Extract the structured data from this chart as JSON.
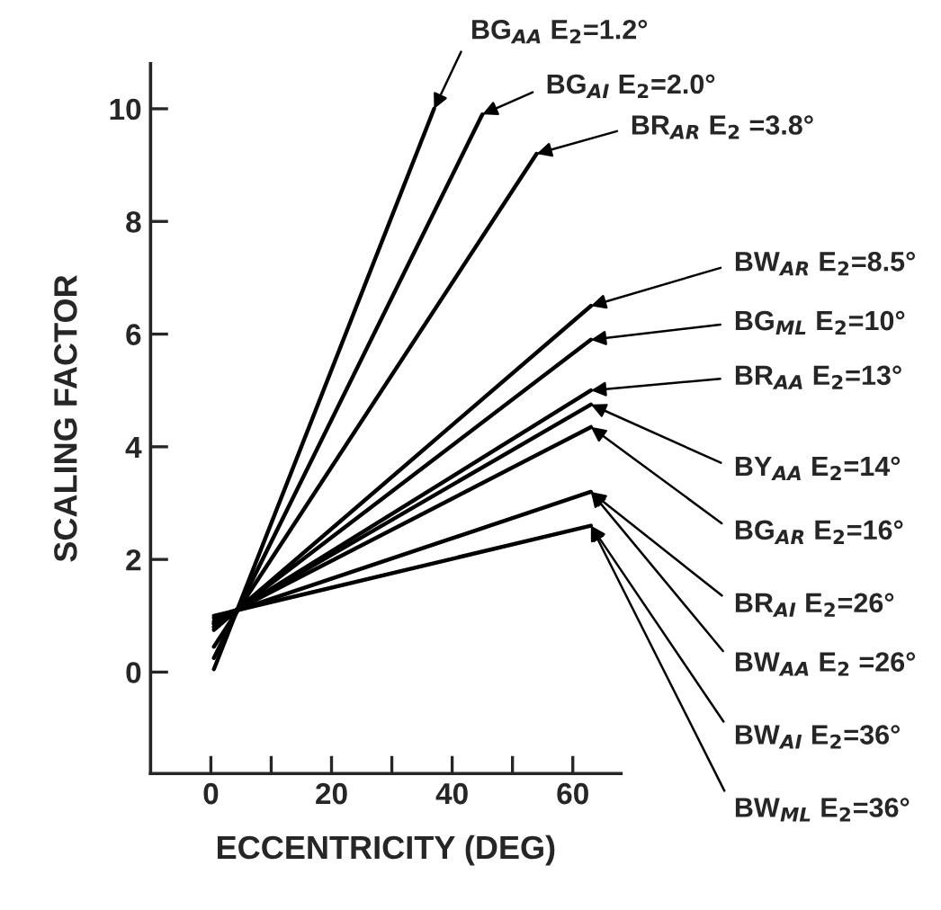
{
  "chart_data": {
    "type": "line",
    "xlabel": "ECCENTRICITY (DEG)",
    "ylabel": "SCALING FACTOR",
    "xlim": [
      -10,
      68
    ],
    "ylim": [
      -1.8,
      10.8
    ],
    "xticks": [
      0,
      {
        "value": 10,
        "label": null
      },
      20,
      {
        "value": 30,
        "label": null
      },
      40,
      {
        "value": 50,
        "label": null
      },
      60
    ],
    "yticks": [
      0,
      2,
      4,
      6,
      8,
      10
    ],
    "grid": false,
    "legend": false,
    "marker": "none",
    "line_style": "solid",
    "series": [
      {
        "color": "#000000",
        "x": [
          0.5,
          37
        ],
        "values": [
          0.05,
          10.0
        ]
      },
      {
        "color": "#000000",
        "x": [
          0.5,
          45
        ],
        "values": [
          0.25,
          9.9
        ]
      },
      {
        "color": "#000000",
        "x": [
          0.5,
          54
        ],
        "values": [
          0.45,
          9.2
        ]
      },
      {
        "color": "#000000",
        "x": [
          0.5,
          63
        ],
        "values": [
          0.75,
          6.5
        ]
      },
      {
        "color": "#000000",
        "x": [
          0.5,
          63
        ],
        "values": [
          0.8,
          5.9
        ]
      },
      {
        "color": "#000000",
        "x": [
          0.5,
          63
        ],
        "values": [
          0.85,
          5.0
        ]
      },
      {
        "color": "#000000",
        "x": [
          0.5,
          63
        ],
        "values": [
          0.87,
          4.75
        ]
      },
      {
        "color": "#000000",
        "x": [
          0.5,
          63
        ],
        "values": [
          0.9,
          4.35
        ]
      },
      {
        "color": "#000000",
        "x": [
          0.5,
          63
        ],
        "values": [
          0.96,
          3.2
        ]
      },
      {
        "color": "#000000",
        "x": [
          0.5,
          63
        ],
        "values": [
          1.0,
          2.6
        ]
      }
    ],
    "annotations": [
      {
        "text": "BG$_{AA}$ E$_{2}$=1.2°",
        "x": 37,
        "y": 10.0
      },
      {
        "text": "BG$_{AI}$ E$_{2}$=2.0°",
        "x": 45,
        "y": 9.9
      },
      {
        "text": "BR$_{AR}$ E$_{2}$ =3.8°",
        "x": 54,
        "y": 9.2
      },
      {
        "text": "BW$_{AR}$ E$_{2}$=8.5°",
        "x": 63,
        "y": 6.5
      },
      {
        "text": "BG$_{ML}$ E$_{2}$=10°",
        "x": 63,
        "y": 5.9
      },
      {
        "text": "BR$_{AA}$ E$_{2}$=13°",
        "x": 63,
        "y": 5.0
      },
      {
        "text": "BY$_{AA}$ E$_{2}$=14°",
        "x": 63,
        "y": 4.75
      },
      {
        "text": "BG$_{AR}$ E$_{2}$=16°",
        "x": 63,
        "y": 4.35
      },
      {
        "text": "BR$_{AI}$ E$_{2}$=26°",
        "x": 63,
        "y": 3.2
      },
      {
        "text": "BW$_{AA}$ E$_{2}$ =26°",
        "x": 63,
        "y": 3.2
      },
      {
        "text": "BW$_{AI}$ E$_{2}$=36°",
        "x": 63,
        "y": 2.6
      },
      {
        "text": "BW$_{ML}$ E$_{2}$=36°",
        "x": 63,
        "y": 2.6
      }
    ]
  }
}
